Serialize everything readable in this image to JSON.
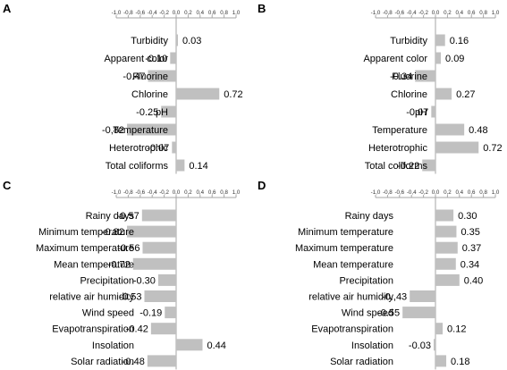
{
  "chart_data": [
    {
      "type": "bar",
      "panel_label": "A",
      "xlim": [
        -1.0,
        1.0
      ],
      "ticks": [
        "-1,0",
        "-0,8",
        "-0,6",
        "-0,4",
        "-0,2",
        "0,0",
        "0,2",
        "0,4",
        "0,6",
        "0,8",
        "1,0"
      ],
      "categories": [
        "Turbidity",
        "Apparent color",
        "Fluorine",
        "Chlorine",
        "pH",
        "Temperature",
        "Heterotrophic",
        "Total coliforms"
      ],
      "values": [
        0.03,
        -0.1,
        -0.47,
        0.72,
        -0.25,
        -0.82,
        -0.07,
        0.14
      ],
      "value_labels": [
        "0.03",
        "-0.10",
        "-0.47",
        "0.72",
        "-0.25",
        "-0,82",
        "-0.07",
        "0.14"
      ],
      "bar_color": "#c0c0c0"
    },
    {
      "type": "bar",
      "panel_label": "B",
      "xlim": [
        -1.0,
        1.0
      ],
      "ticks": [
        "-1,0",
        "-0,8",
        "-0,6",
        "-0,4",
        "-0,2",
        "0,0",
        "0,2",
        "0,4",
        "0,6",
        "0,8",
        "1,0"
      ],
      "categories": [
        "Turbidity",
        "Apparent color",
        "Fluorine",
        "Chlorine",
        "pH",
        "Temperature",
        "Heterotrophic",
        "Total coliforms"
      ],
      "values": [
        0.16,
        0.09,
        -0.34,
        0.27,
        -0.07,
        0.48,
        0.72,
        -0.22
      ],
      "value_labels": [
        "0.16",
        "0.09",
        "-0.34",
        "0.27",
        "-0.07",
        "0.48",
        "0.72",
        "-0.22"
      ],
      "bar_color": "#c0c0c0"
    },
    {
      "type": "bar",
      "panel_label": "C",
      "xlim": [
        -1.0,
        1.0
      ],
      "ticks": [
        "-1,0",
        "-0,8",
        "-0,6",
        "-0,4",
        "-0,2",
        "0,0",
        "0,2",
        "0,4",
        "0,6",
        "0,8",
        "1,0"
      ],
      "categories": [
        "Rainy days",
        "Minimum temperature",
        "Maximum temperature",
        "Mean temperature",
        "Precipitation",
        "relative air humidity",
        "Wind speed",
        "Evapotranspiration",
        "Insolation",
        "Solar radiation"
      ],
      "values": [
        -0.57,
        -0.82,
        -0.56,
        -0.72,
        -0.3,
        -0.53,
        -0.19,
        -0.42,
        0.44,
        -0.48
      ],
      "value_labels": [
        "-0.57",
        "-0.82",
        "-0.56",
        "-0.72",
        "-0.30",
        "-0.53",
        "-0.19",
        "-0.42",
        "0.44",
        "-0.48"
      ],
      "bar_color": "#c0c0c0"
    },
    {
      "type": "bar",
      "panel_label": "D",
      "xlim": [
        -1.0,
        1.0
      ],
      "ticks": [
        "-1,0",
        "-0,8",
        "-0,6",
        "-0,4",
        "-0,2",
        "0,0",
        "0,2",
        "0,4",
        "0,6",
        "0,8",
        "1,0"
      ],
      "categories": [
        "Rainy days",
        "Minimum temperature",
        "Maximum temperature",
        "Mean temperature",
        "Precipitation",
        "relative air humidity",
        "Wind speed",
        "Evapotranspiration",
        "Insolation",
        "Solar radiation"
      ],
      "values": [
        0.3,
        0.35,
        0.37,
        0.34,
        0.4,
        -0.43,
        -0.55,
        0.12,
        -0.03,
        0.18
      ],
      "value_labels": [
        "0.30",
        "0.35",
        "0.37",
        "0.34",
        "0.40",
        "-0.,43",
        "-0.55",
        "0.12",
        "-0.03",
        "0.18"
      ],
      "bar_color": "#c0c0c0"
    }
  ]
}
